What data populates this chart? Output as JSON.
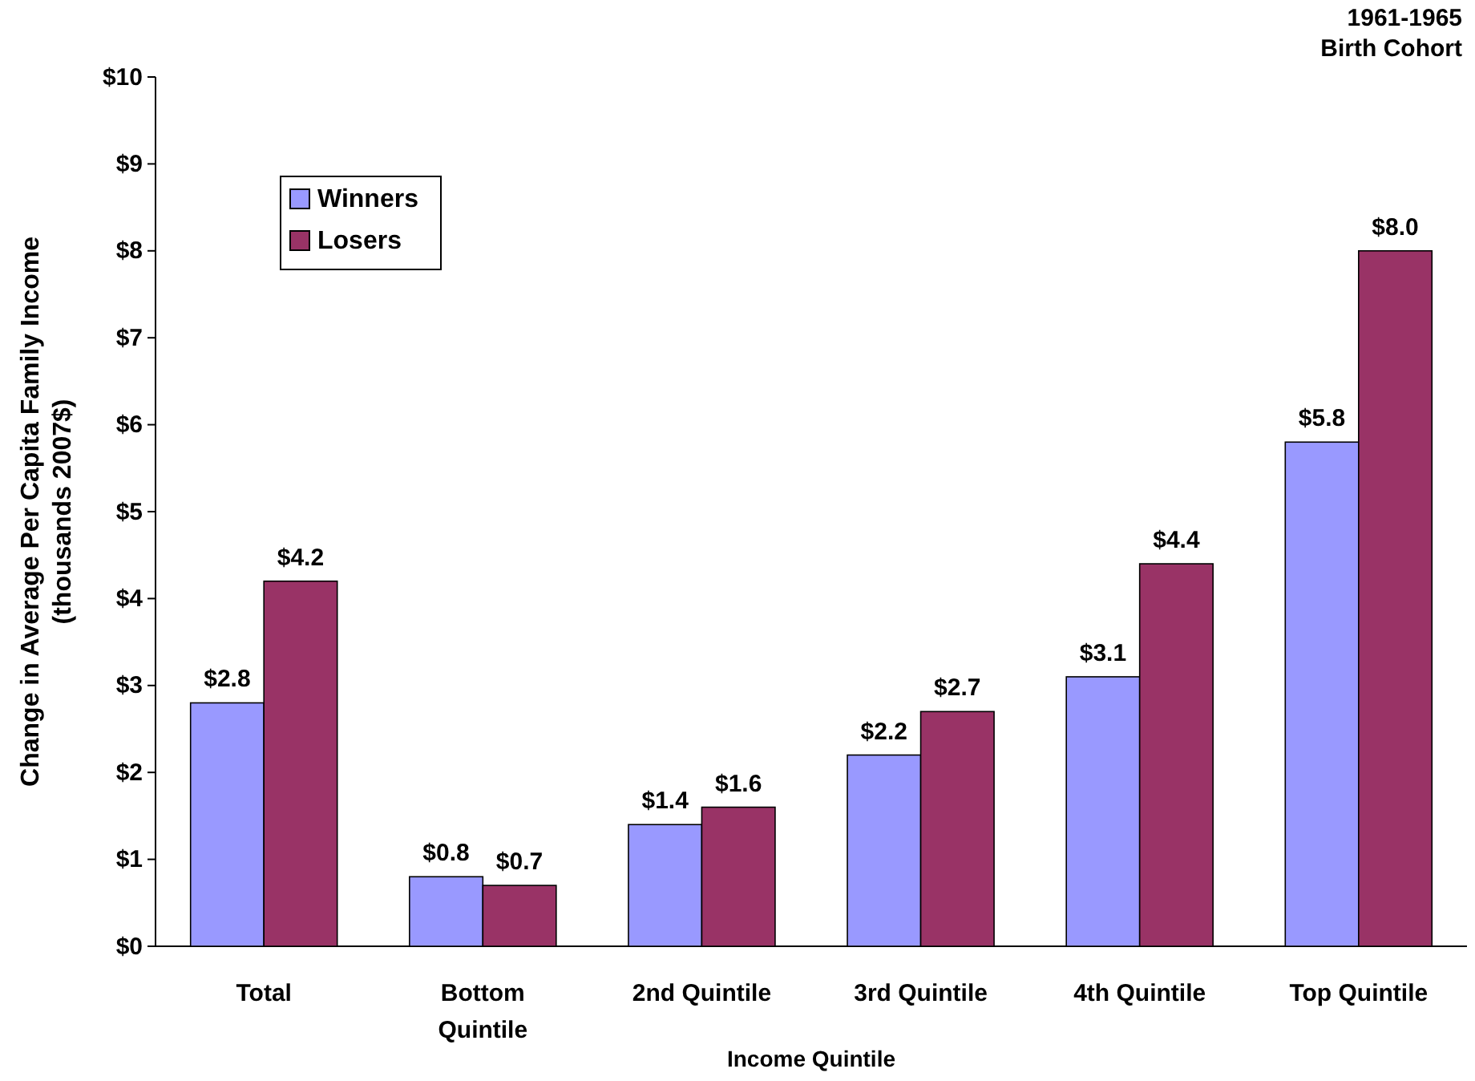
{
  "chart_data": {
    "type": "bar",
    "xlabel": "Income Quintile",
    "ylabel": "Change in Average Per Capita Family Income (thousands 2007$)",
    "annotations": [
      "1961-1965",
      "Birth Cohort"
    ],
    "categories": [
      "Total",
      "Bottom Quintile",
      "2nd Quintile",
      "3rd Quintile",
      "4th Quintile",
      "Top Quintile"
    ],
    "series": [
      {
        "name": "Winners",
        "color": "#9999ff",
        "values": [
          2.8,
          0.8,
          1.4,
          2.2,
          3.1,
          5.8
        ],
        "value_labels": [
          "$2.8",
          "$0.8",
          "$1.4",
          "$2.2",
          "$3.1",
          "$5.8"
        ]
      },
      {
        "name": "Losers",
        "color": "#993366",
        "values": [
          4.2,
          0.7,
          1.6,
          2.7,
          4.4,
          8.0
        ],
        "value_labels": [
          "$4.2",
          "$0.7",
          "$1.6",
          "$2.7",
          "$4.4",
          "$8.0"
        ]
      }
    ],
    "ylim": [
      0,
      10
    ],
    "yticks": [
      {
        "value": 0,
        "label": "$0"
      },
      {
        "value": 1,
        "label": "$1"
      },
      {
        "value": 2,
        "label": "$2"
      },
      {
        "value": 3,
        "label": "$3"
      },
      {
        "value": 4,
        "label": "$4"
      },
      {
        "value": 5,
        "label": "$5"
      },
      {
        "value": 6,
        "label": "$6"
      },
      {
        "value": 7,
        "label": "$7"
      },
      {
        "value": 8,
        "label": "$8"
      },
      {
        "value": 9,
        "label": "$9"
      },
      {
        "value": 10,
        "label": "$10"
      }
    ],
    "grid": false,
    "legend": "top left"
  }
}
